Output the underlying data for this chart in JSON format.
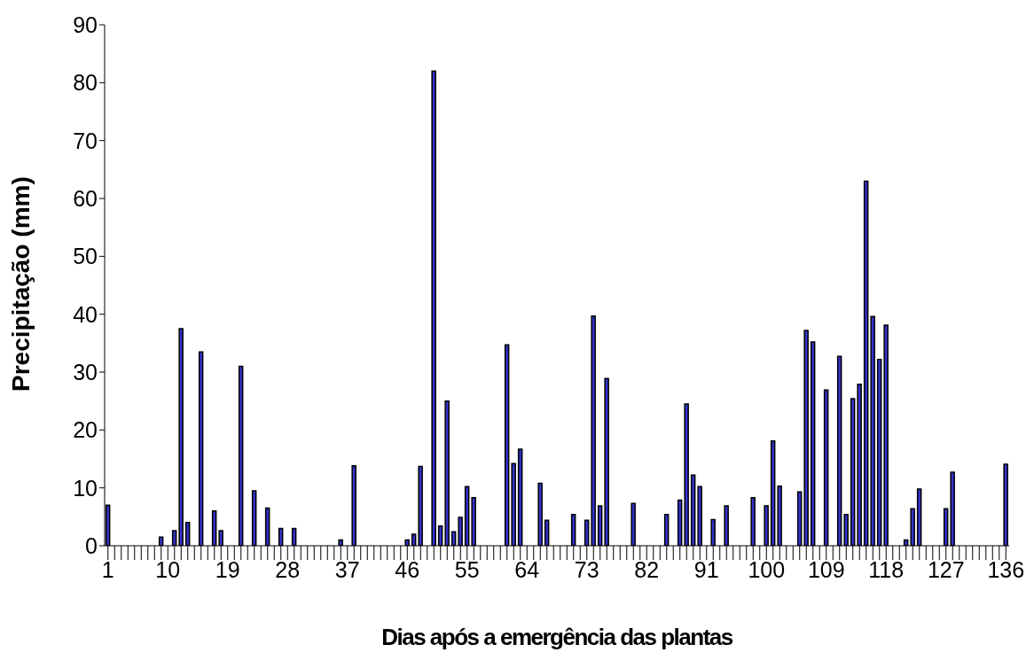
{
  "chart_data": {
    "type": "bar",
    "xlabel": "Dias após a emergência das plantas",
    "ylabel": "Precipitação (mm)",
    "categories": [
      "1",
      null,
      null,
      null,
      null,
      null,
      null,
      null,
      null,
      "10",
      null,
      null,
      null,
      null,
      null,
      null,
      null,
      null,
      "19",
      null,
      null,
      null,
      null,
      null,
      null,
      null,
      null,
      "28",
      null,
      null,
      null,
      null,
      null,
      null,
      null,
      null,
      "37",
      null,
      null,
      null,
      null,
      null,
      null,
      null,
      null,
      "46",
      null,
      null,
      null,
      null,
      null,
      null,
      null,
      null,
      "55",
      null,
      null,
      null,
      null,
      null,
      null,
      null,
      null,
      "64",
      null,
      null,
      null,
      null,
      null,
      null,
      null,
      null,
      "73",
      null,
      null,
      null,
      null,
      null,
      null,
      null,
      null,
      "82",
      null,
      null,
      null,
      null,
      null,
      null,
      null,
      null,
      "91",
      null,
      null,
      null,
      null,
      null,
      null,
      null,
      null,
      "100",
      null,
      null,
      null,
      null,
      null,
      null,
      null,
      null,
      "109",
      null,
      null,
      null,
      null,
      null,
      null,
      null,
      null,
      "118",
      null,
      null,
      null,
      null,
      null,
      null,
      null,
      null,
      "127",
      null,
      null,
      null,
      null,
      null,
      null,
      null,
      null,
      "136"
    ],
    "values": [
      7,
      0,
      0,
      0,
      0,
      0,
      0,
      0,
      1.5,
      0,
      2.6,
      37.5,
      4,
      0,
      33.5,
      0,
      6,
      2.6,
      0,
      0,
      31,
      0,
      9.5,
      0,
      6.5,
      0,
      3,
      0,
      3,
      0,
      0,
      0,
      0,
      0,
      0,
      1,
      0,
      13.8,
      0,
      0,
      0,
      0,
      0,
      0,
      0,
      1,
      2,
      13.7,
      0,
      82,
      3.4,
      25,
      2.4,
      4.9,
      10.2,
      8.3,
      0,
      0,
      0,
      0,
      34.7,
      14.2,
      16.7,
      0,
      0,
      10.8,
      4.4,
      0,
      0,
      0,
      5.4,
      0,
      4.4,
      39.7,
      6.9,
      28.9,
      0,
      0,
      0,
      7.3,
      0,
      0,
      0,
      0,
      5.4,
      0,
      7.9,
      24.5,
      12.2,
      10.2,
      0,
      4.5,
      0,
      6.9,
      0,
      0,
      0,
      8.3,
      0,
      6.9,
      18.1,
      10.3,
      0,
      0,
      9.3,
      37.2,
      35.2,
      0,
      26.9,
      0,
      32.7,
      5.4,
      25.4,
      27.9,
      63,
      39.6,
      32.2,
      38.1,
      0,
      0,
      1,
      6.4,
      9.8,
      0,
      0,
      0,
      6.4,
      12.7,
      0,
      0,
      0,
      0,
      0,
      0,
      0,
      14.1
    ],
    "color": "#3333cc",
    "ylim": [
      0,
      90
    ],
    "yticks": [
      0,
      10,
      20,
      30,
      40,
      50,
      60,
      70,
      80,
      90
    ]
  }
}
